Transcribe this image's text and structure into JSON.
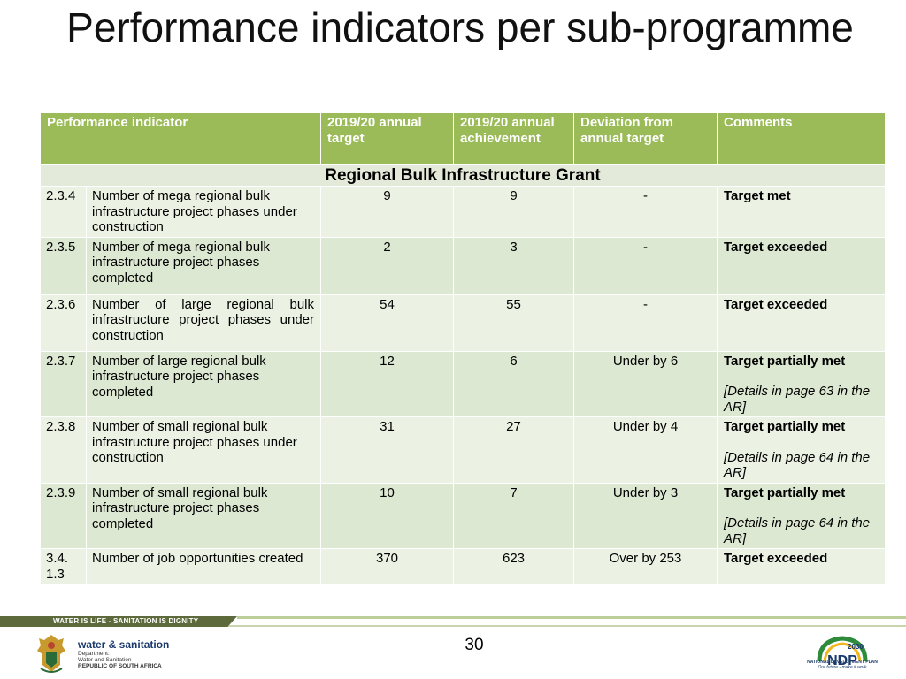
{
  "title": "Performance indicators per sub-programme",
  "table": {
    "headers": [
      "Performance indicator",
      "2019/20 annual target",
      "2019/20 annual achievement",
      "Deviation from annual target",
      "Comments"
    ],
    "section_title": "Regional Bulk Infrastructure Grant",
    "rows": [
      {
        "code": "2.3.4",
        "indicator": "Number of mega regional bulk infrastructure project phases under construction",
        "target": "9",
        "achievement": "9",
        "deviation": "-",
        "comment": "Target met",
        "detail": ""
      },
      {
        "code": "2.3.5",
        "indicator": "Number of mega regional bulk infrastructure project phases completed",
        "target": "2",
        "achievement": "3",
        "deviation": "-",
        "comment": "Target exceeded",
        "detail": ""
      },
      {
        "code": "2.3.6",
        "indicator": "Number of large regional bulk infrastructure project phases under construction",
        "target": "54",
        "achievement": "55",
        "deviation": "-",
        "comment": "Target exceeded",
        "detail": ""
      },
      {
        "code": "2.3.7",
        "indicator": "Number of large regional bulk infrastructure project phases completed",
        "target": "12",
        "achievement": "6",
        "deviation": "Under by 6",
        "comment": "Target partially met",
        "detail": "[Details in page 63 in the AR]"
      },
      {
        "code": "2.3.8",
        "indicator": "Number of small regional bulk infrastructure project phases under construction",
        "target": "31",
        "achievement": "27",
        "deviation": "Under by 4",
        "comment": "Target partially met",
        "detail": "[Details in page 64 in the AR]"
      },
      {
        "code": "2.3.9",
        "indicator": "Number of small regional bulk infrastructure project phases completed",
        "target": "10",
        "achievement": "7",
        "deviation": "Under by 3",
        "comment": "Target partially met",
        "detail": "[Details in page 64 in the AR]"
      },
      {
        "code": "3.4.\n1.3",
        "indicator": "Number of job opportunities created",
        "target": "370",
        "achievement": "623",
        "deviation": "Over by 253",
        "comment": "Target exceeded",
        "detail": ""
      }
    ]
  },
  "footer": {
    "slogan": "WATER IS LIFE - SANITATION IS DIGNITY",
    "department_name": "water & sanitation",
    "department_lines": [
      "Department:",
      "Water and Sanitation",
      "REPUBLIC OF SOUTH AFRICA"
    ],
    "page_number": "30",
    "ndp_logo_text": "NDP",
    "ndp_year": "2030",
    "ndp_caption": "NATIONAL DEVELOPMENT PLAN",
    "ndp_tagline": "Our future - make it work"
  },
  "colors": {
    "header_green": "#9bbb59",
    "row_light": "#ebf1e3",
    "row_dark": "#dde8d2",
    "footer_dark": "#5c6a3c"
  }
}
